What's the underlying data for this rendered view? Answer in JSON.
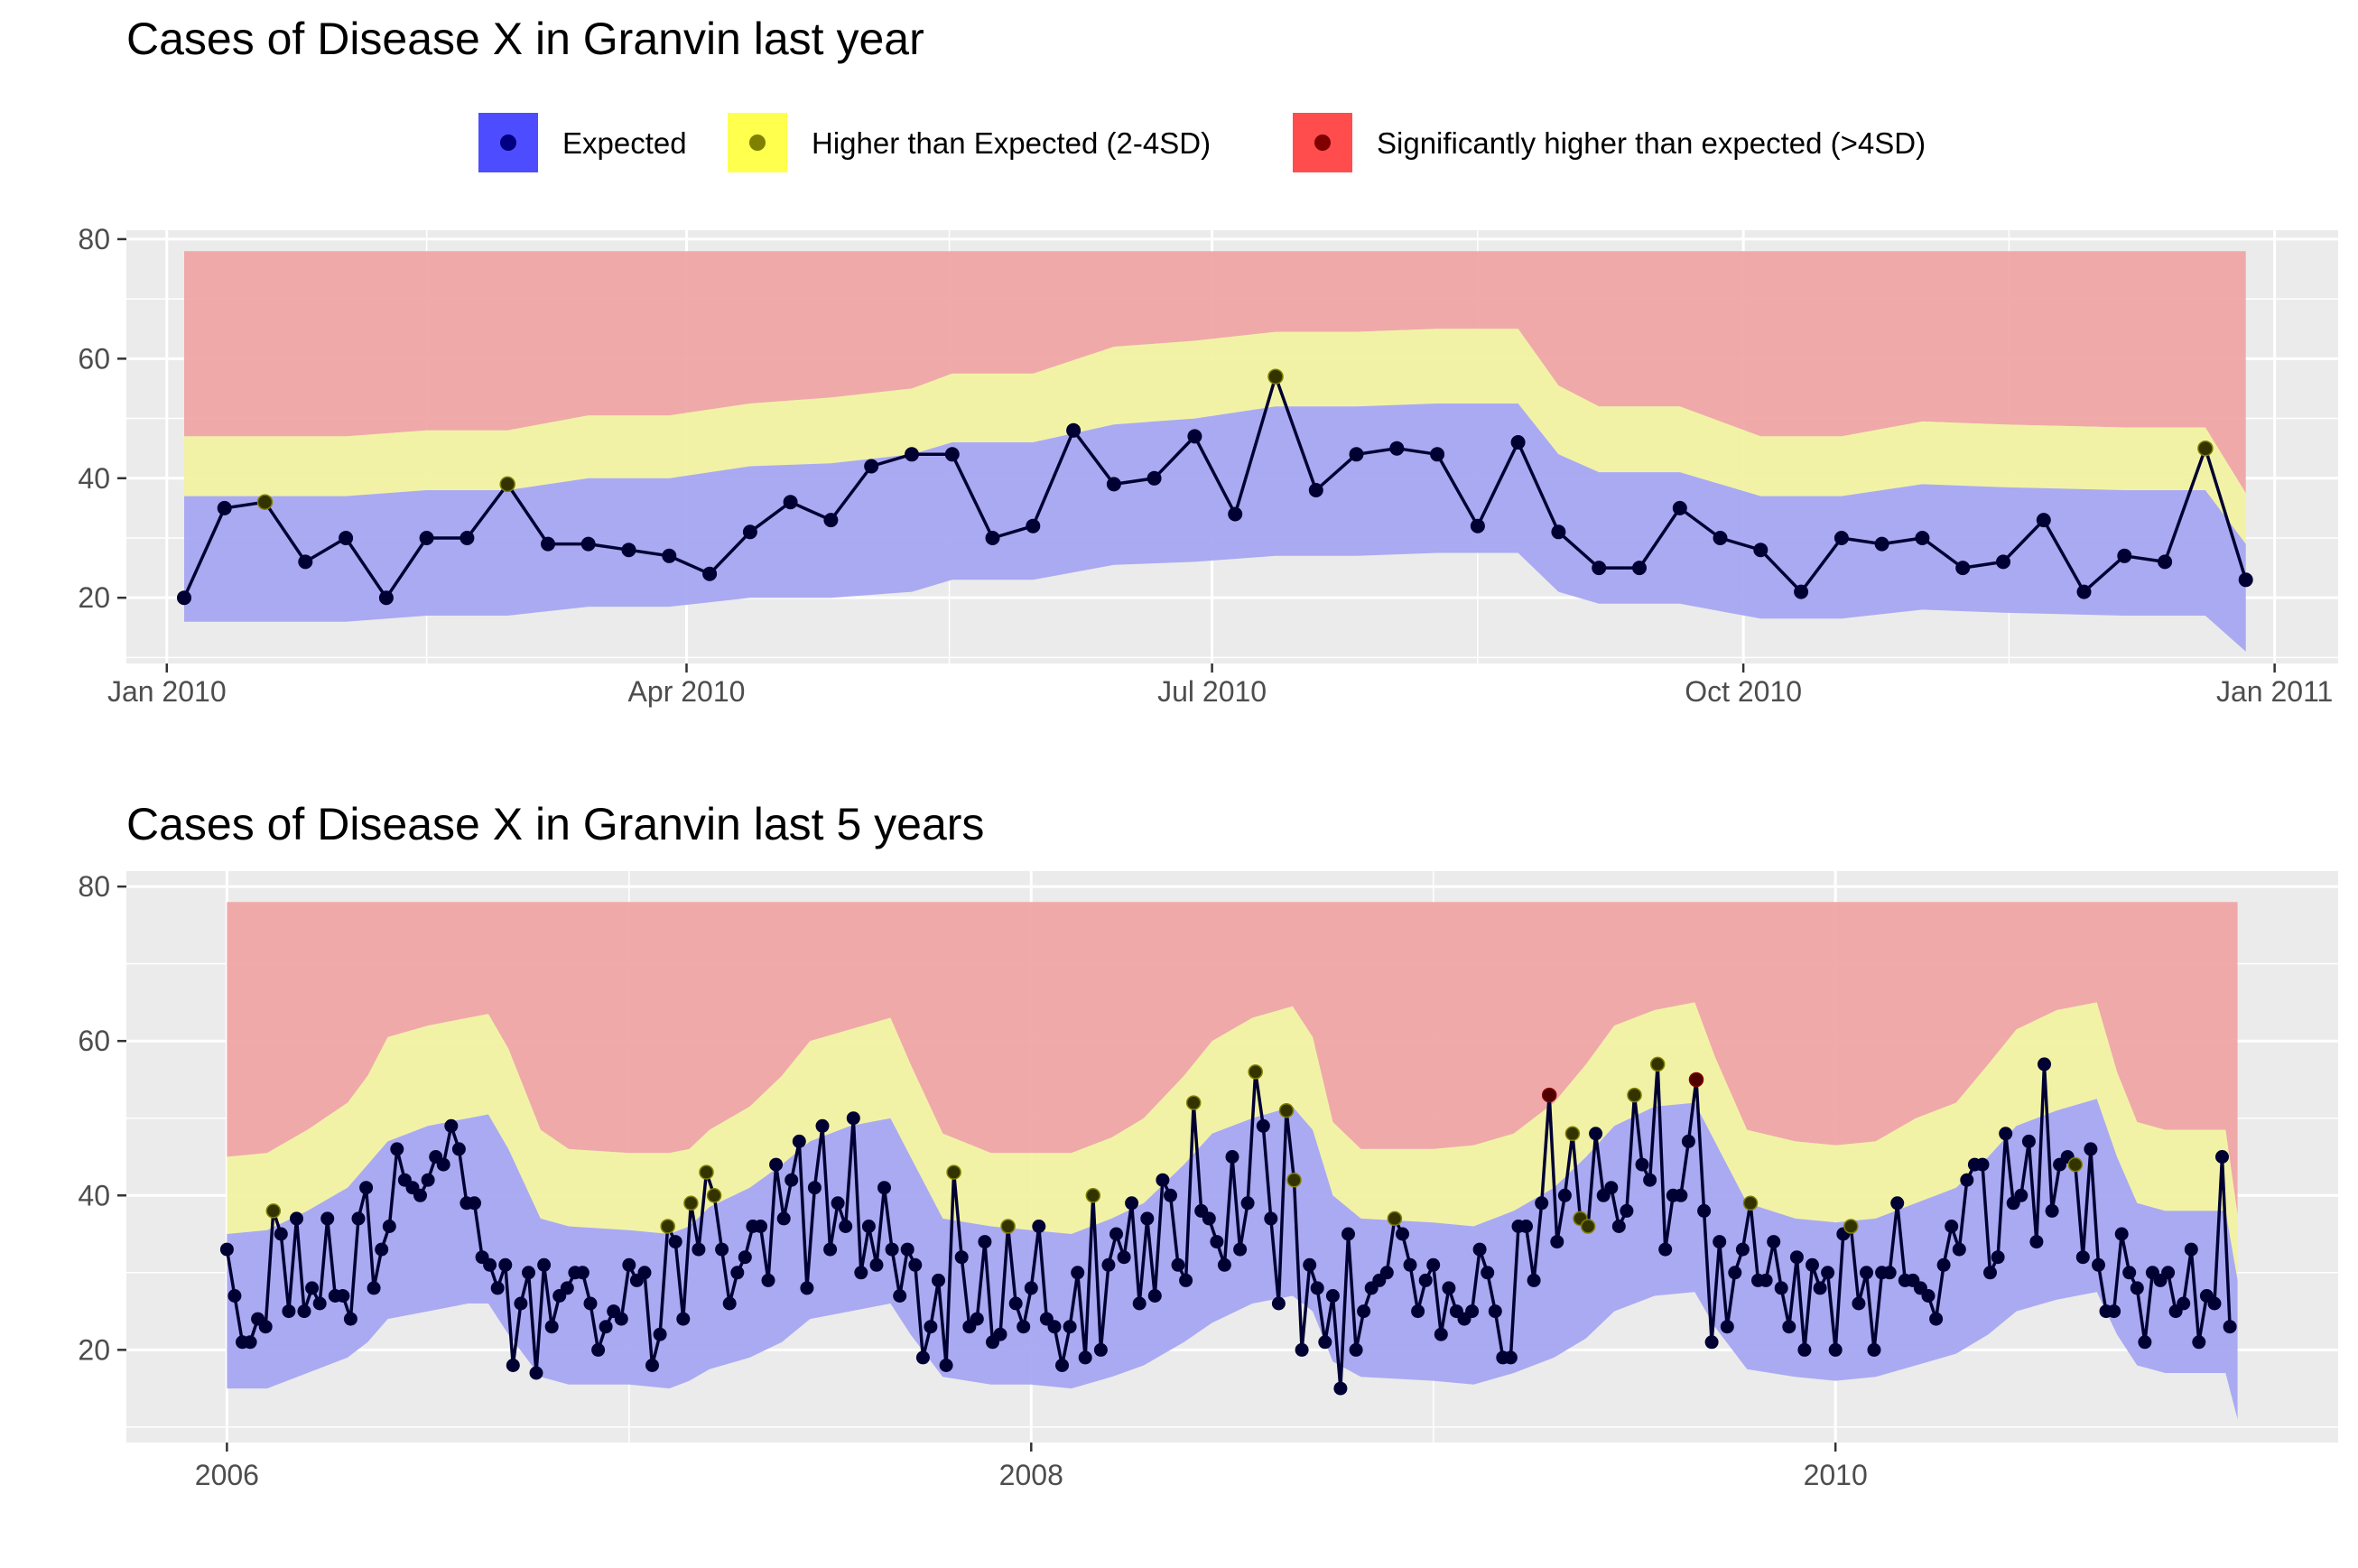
{
  "legend": [
    {
      "label": "Expected",
      "fill": "#4d4dff",
      "dot": "#000080"
    },
    {
      "label": "Higher than Expected (2-4SD)",
      "fill": "#ffff4d",
      "dot": "#808000"
    },
    {
      "label": "Significantly higher than expected (>4SD)",
      "fill": "#ff4d4d",
      "dot": "#800000"
    }
  ],
  "colors": {
    "panel_bg": "#ebebeb",
    "band_expected": "#a4a4f2",
    "band_higher": "#f2f29f",
    "band_sig": "#f0a3a3",
    "line": "#000033"
  },
  "chart_data": [
    {
      "type": "line",
      "title": "Cases of Disease X in Granvin last year",
      "xlabel": "",
      "ylabel": "",
      "x_unit": "date",
      "x_ticks": [
        {
          "date": "2010-01-01",
          "label": "Jan 2010"
        },
        {
          "date": "2010-04-01",
          "label": "Apr 2010"
        },
        {
          "date": "2010-07-01",
          "label": "Jul 2010"
        },
        {
          "date": "2010-10-01",
          "label": "Oct 2010"
        },
        {
          "date": "2011-01-01",
          "label": "Jan 2011"
        }
      ],
      "y_ticks": [
        20,
        40,
        60,
        80
      ],
      "xlim": [
        "2009-12-25",
        "2011-01-12"
      ],
      "ylim": [
        9,
        81.5
      ],
      "grid": true,
      "legend_position": "top",
      "sig_upper": 78,
      "bands": [
        [
          "2010-01-04",
          16,
          37,
          47
        ],
        [
          "2010-01-18",
          16,
          37,
          47
        ],
        [
          "2010-02-01",
          16,
          37,
          47
        ],
        [
          "2010-02-15",
          17,
          38,
          48
        ],
        [
          "2010-03-01",
          17,
          38,
          48
        ],
        [
          "2010-03-15",
          18.5,
          40,
          50.5
        ],
        [
          "2010-03-29",
          18.5,
          40,
          50.5
        ],
        [
          "2010-04-12",
          20,
          42,
          52.5
        ],
        [
          "2010-04-26",
          20,
          42.5,
          53.5
        ],
        [
          "2010-05-10",
          21,
          44,
          55
        ],
        [
          "2010-05-17",
          23,
          46,
          57.5
        ],
        [
          "2010-05-31",
          23,
          46,
          57.5
        ],
        [
          "2010-06-14",
          25.5,
          49,
          62
        ],
        [
          "2010-06-28",
          26,
          50,
          63
        ],
        [
          "2010-07-12",
          27,
          52,
          64.5
        ],
        [
          "2010-07-26",
          27,
          52,
          64.5
        ],
        [
          "2010-08-09",
          27.5,
          52.5,
          65
        ],
        [
          "2010-08-23",
          27.5,
          52.5,
          65
        ],
        [
          "2010-08-30",
          21,
          44,
          55.5
        ],
        [
          "2010-09-06",
          19,
          41,
          52
        ],
        [
          "2010-09-20",
          19,
          41,
          52
        ],
        [
          "2010-10-04",
          16.5,
          37,
          47
        ],
        [
          "2010-10-18",
          16.5,
          37,
          47
        ],
        [
          "2010-11-01",
          18,
          39,
          49.5
        ],
        [
          "2010-11-15",
          17.5,
          38.5,
          49
        ],
        [
          "2010-12-06",
          17,
          38,
          48.5
        ],
        [
          "2010-12-20",
          17,
          38,
          48.5
        ],
        [
          "2010-12-27",
          11,
          29,
          37.5
        ]
      ],
      "x": [
        "2010-01-04",
        "2010-01-11",
        "2010-01-18",
        "2010-01-25",
        "2010-02-01",
        "2010-02-08",
        "2010-02-15",
        "2010-02-22",
        "2010-03-01",
        "2010-03-08",
        "2010-03-15",
        "2010-03-22",
        "2010-03-29",
        "2010-04-05",
        "2010-04-12",
        "2010-04-19",
        "2010-04-26",
        "2010-05-03",
        "2010-05-10",
        "2010-05-17",
        "2010-05-24",
        "2010-05-31",
        "2010-06-07",
        "2010-06-14",
        "2010-06-21",
        "2010-06-28",
        "2010-07-05",
        "2010-07-12",
        "2010-07-19",
        "2010-07-26",
        "2010-08-02",
        "2010-08-09",
        "2010-08-16",
        "2010-08-23",
        "2010-08-30",
        "2010-09-06",
        "2010-09-13",
        "2010-09-20",
        "2010-09-27",
        "2010-10-04",
        "2010-10-11",
        "2010-10-18",
        "2010-10-25",
        "2010-11-01",
        "2010-11-08",
        "2010-11-15",
        "2010-11-22",
        "2010-11-29",
        "2010-12-06",
        "2010-12-13",
        "2010-12-20",
        "2010-12-27"
      ],
      "y": [
        20,
        35,
        36,
        26,
        30,
        20,
        30,
        30,
        39,
        29,
        29,
        28,
        27,
        24,
        31,
        36,
        33,
        42,
        44,
        44,
        30,
        32,
        48,
        39,
        40,
        47,
        34,
        57,
        38,
        44,
        45,
        44,
        32,
        46,
        31,
        25,
        25,
        35,
        30,
        28,
        21,
        30,
        29,
        30,
        25,
        26,
        33,
        21,
        27,
        26,
        45,
        23
      ],
      "status": [
        0,
        0,
        1,
        0,
        0,
        0,
        0,
        0,
        1,
        0,
        0,
        0,
        0,
        0,
        0,
        0,
        0,
        0,
        0,
        0,
        0,
        0,
        0,
        0,
        0,
        0,
        0,
        1,
        0,
        0,
        0,
        0,
        0,
        0,
        0,
        0,
        0,
        0,
        0,
        0,
        0,
        0,
        0,
        0,
        0,
        0,
        0,
        0,
        0,
        0,
        1,
        0
      ]
    },
    {
      "type": "line",
      "title": "Cases of Disease X in Granvin last 5 years",
      "xlabel": "",
      "ylabel": "",
      "x_unit": "year",
      "x_ticks": [
        {
          "value": 2006,
          "label": "2006"
        },
        {
          "value": 2008,
          "label": "2008"
        },
        {
          "value": 2010,
          "label": "2010"
        }
      ],
      "y_ticks": [
        20,
        40,
        60,
        80
      ],
      "xlim": [
        2005.75,
        2011.25
      ],
      "ylim": [
        8,
        82
      ],
      "grid": true,
      "sig_upper": 78,
      "bands": [
        [
          2006.0,
          15,
          35,
          45
        ],
        [
          2006.1,
          15,
          35.5,
          45.5
        ],
        [
          2006.2,
          17,
          38,
          48.5
        ],
        [
          2006.3,
          19,
          41,
          52
        ],
        [
          2006.35,
          21,
          44,
          55.5
        ],
        [
          2006.4,
          24,
          47,
          60.5
        ],
        [
          2006.5,
          25,
          49,
          62
        ],
        [
          2006.6,
          26,
          50,
          63
        ],
        [
          2006.65,
          26,
          50.5,
          63.5
        ],
        [
          2006.7,
          22,
          46,
          59
        ],
        [
          2006.78,
          16.5,
          37,
          48.5
        ],
        [
          2006.85,
          15.5,
          36,
          46
        ],
        [
          2007.0,
          15.5,
          35.5,
          45.5
        ],
        [
          2007.1,
          15,
          35,
          45.5
        ],
        [
          2007.15,
          16,
          36,
          46
        ],
        [
          2007.2,
          17.5,
          38.5,
          48.5
        ],
        [
          2007.3,
          19,
          41,
          51.5
        ],
        [
          2007.38,
          21,
          44,
          55.5
        ],
        [
          2007.45,
          24,
          47,
          60
        ],
        [
          2007.55,
          25,
          49,
          61.5
        ],
        [
          2007.65,
          26,
          50,
          63
        ],
        [
          2007.7,
          22,
          45,
          57
        ],
        [
          2007.78,
          16.5,
          37,
          48
        ],
        [
          2007.9,
          15.5,
          36,
          45.5
        ],
        [
          2008.0,
          15.5,
          35.5,
          45.5
        ],
        [
          2008.1,
          15,
          35,
          45.5
        ],
        [
          2008.2,
          16.5,
          37,
          47.5
        ],
        [
          2008.28,
          18,
          39,
          50
        ],
        [
          2008.38,
          21,
          44,
          55.5
        ],
        [
          2008.45,
          23.5,
          48,
          60
        ],
        [
          2008.55,
          26,
          50,
          63
        ],
        [
          2008.65,
          27,
          51.5,
          64.5
        ],
        [
          2008.7,
          25,
          48.5,
          60.5
        ],
        [
          2008.75,
          18.5,
          40,
          49.5
        ],
        [
          2008.82,
          16.5,
          37,
          46
        ],
        [
          2009.0,
          16,
          36.5,
          46
        ],
        [
          2009.1,
          15.5,
          36,
          46.5
        ],
        [
          2009.2,
          17,
          38,
          48
        ],
        [
          2009.3,
          19,
          41,
          52
        ],
        [
          2009.38,
          21.5,
          45,
          57
        ],
        [
          2009.45,
          25,
          49,
          62
        ],
        [
          2009.55,
          27,
          51.5,
          64
        ],
        [
          2009.65,
          27.5,
          52,
          65
        ],
        [
          2009.7,
          23,
          47,
          58
        ],
        [
          2009.78,
          17.5,
          39,
          48.5
        ],
        [
          2009.9,
          16.5,
          37,
          47
        ],
        [
          2010.0,
          16,
          36.5,
          46.5
        ],
        [
          2010.1,
          16.5,
          37,
          47
        ],
        [
          2010.2,
          18,
          39,
          50
        ],
        [
          2010.3,
          19.5,
          41,
          52
        ],
        [
          2010.38,
          22,
          45,
          57
        ],
        [
          2010.45,
          25,
          49,
          61.5
        ],
        [
          2010.55,
          26.5,
          51,
          64
        ],
        [
          2010.65,
          27.5,
          52.5,
          65
        ],
        [
          2010.7,
          22,
          45,
          56
        ],
        [
          2010.75,
          18,
          39,
          49.5
        ],
        [
          2010.82,
          17,
          38,
          48.5
        ],
        [
          2010.97,
          17,
          38,
          48.5
        ],
        [
          2011.0,
          11,
          29,
          37.5
        ]
      ],
      "x_start": 2006.0,
      "x_step": 0.019231,
      "y": [
        33,
        27,
        21,
        21,
        24,
        23,
        38,
        35,
        25,
        37,
        25,
        28,
        26,
        37,
        27,
        27,
        24,
        37,
        41,
        28,
        33,
        36,
        46,
        42,
        41,
        40,
        42,
        45,
        44,
        49,
        46,
        39,
        39,
        32,
        31,
        28,
        31,
        18,
        26,
        30,
        17,
        31,
        23,
        27,
        28,
        30,
        30,
        26,
        20,
        23,
        25,
        24,
        31,
        29,
        30,
        18,
        22,
        36,
        34,
        24,
        39,
        33,
        43,
        40,
        33,
        26,
        30,
        32,
        36,
        36,
        29,
        44,
        37,
        42,
        47,
        28,
        41,
        49,
        33,
        39,
        36,
        50,
        30,
        36,
        31,
        41,
        33,
        27,
        33,
        31,
        19,
        23,
        29,
        18,
        43,
        32,
        23,
        24,
        34,
        21,
        22,
        36,
        26,
        23,
        28,
        36,
        24,
        23,
        18,
        23,
        30,
        19,
        40,
        20,
        31,
        35,
        32,
        39,
        26,
        37,
        27,
        42,
        40,
        31,
        29,
        52,
        38,
        37,
        34,
        31,
        45,
        33,
        39,
        56,
        49,
        37,
        26,
        51,
        42,
        20,
        31,
        28,
        21,
        27,
        15,
        35,
        20,
        25,
        28,
        29,
        30,
        37,
        35,
        31,
        25,
        29,
        31,
        22,
        28,
        25,
        24,
        25,
        33,
        30,
        25,
        19,
        19,
        36,
        36,
        29,
        39,
        53,
        34,
        40,
        48,
        37,
        36,
        48,
        40,
        41,
        36,
        38,
        53,
        44,
        42,
        57,
        33,
        40,
        40,
        47,
        55,
        38,
        21,
        34,
        23,
        30,
        33,
        39,
        29,
        29,
        34,
        28,
        23,
        32,
        20,
        31,
        28,
        30,
        20,
        35,
        36,
        26,
        30,
        20,
        30,
        30,
        39,
        29,
        29,
        28,
        27,
        24,
        31,
        36,
        33,
        42,
        44,
        44,
        30,
        32,
        48,
        39,
        40,
        47,
        34,
        57,
        38,
        44,
        45,
        44,
        32,
        46,
        31,
        25,
        25,
        35,
        30,
        28,
        21,
        30,
        29,
        30,
        25,
        26,
        33,
        21,
        27,
        26,
        45,
        23
      ],
      "status": [
        0,
        0,
        0,
        0,
        0,
        0,
        1,
        0,
        0,
        0,
        0,
        0,
        0,
        0,
        0,
        0,
        0,
        0,
        0,
        0,
        0,
        0,
        0,
        0,
        0,
        0,
        0,
        0,
        0,
        0,
        0,
        0,
        0,
        0,
        0,
        0,
        0,
        0,
        0,
        0,
        0,
        0,
        0,
        0,
        0,
        0,
        0,
        0,
        0,
        0,
        0,
        0,
        0,
        0,
        0,
        0,
        0,
        1,
        0,
        0,
        1,
        0,
        1,
        1,
        0,
        0,
        0,
        0,
        0,
        0,
        0,
        0,
        0,
        0,
        0,
        0,
        0,
        0,
        0,
        0,
        0,
        0,
        0,
        0,
        0,
        0,
        0,
        0,
        0,
        0,
        0,
        0,
        0,
        0,
        1,
        0,
        0,
        0,
        0,
        0,
        0,
        1,
        0,
        0,
        0,
        0,
        0,
        0,
        0,
        0,
        0,
        0,
        1,
        0,
        0,
        0,
        0,
        0,
        0,
        0,
        0,
        0,
        0,
        0,
        0,
        1,
        0,
        0,
        0,
        0,
        0,
        0,
        0,
        1,
        0,
        0,
        0,
        1,
        1,
        0,
        0,
        0,
        0,
        0,
        0,
        0,
        0,
        0,
        0,
        0,
        0,
        1,
        0,
        0,
        0,
        0,
        0,
        0,
        0,
        0,
        0,
        0,
        0,
        0,
        0,
        0,
        0,
        0,
        0,
        0,
        0,
        2,
        0,
        0,
        1,
        1,
        1,
        0,
        0,
        0,
        0,
        0,
        1,
        0,
        0,
        1,
        0,
        0,
        0,
        0,
        2,
        0,
        0,
        0,
        0,
        0,
        0,
        1,
        0,
        0,
        0,
        0,
        0,
        0,
        0,
        0,
        0,
        0,
        0,
        0,
        1,
        0,
        0,
        0,
        0,
        0,
        0,
        0,
        0,
        0,
        0,
        0,
        0,
        0,
        0,
        0,
        0,
        0,
        0,
        0,
        0,
        0,
        0,
        0,
        0,
        0,
        0,
        0,
        0,
        1,
        0,
        0,
        0,
        0,
        0,
        0,
        0,
        0,
        0,
        0,
        0,
        0,
        0,
        0,
        0,
        0,
        0,
        0,
        0,
        0,
        0,
        0,
        0,
        0,
        0,
        0,
        0,
        0,
        0,
        0,
        0,
        1,
        0
      ]
    }
  ]
}
